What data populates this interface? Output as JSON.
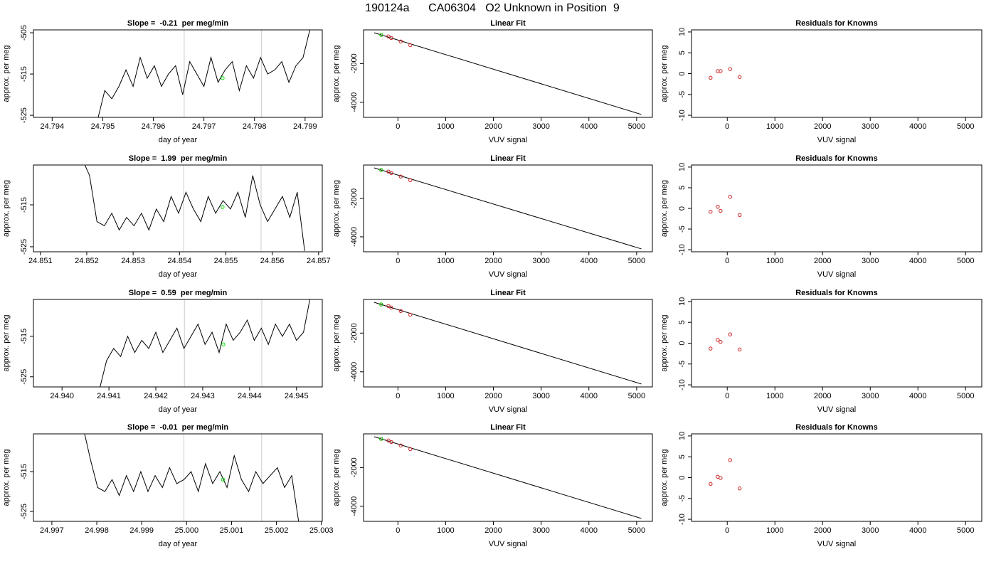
{
  "title": "190124a      CA06304   O2 Unknown in Position  9",
  "chart_data": [
    {
      "type": "line",
      "title": "Slope =  -0.21  per meg/min",
      "xlabel": "day of year",
      "ylabel": "approx. per meg",
      "xlim": [
        24.79363,
        24.79934
      ],
      "ylim": [
        -525.5,
        -504.3
      ],
      "xticks": [
        24.794,
        24.795,
        24.796,
        24.797,
        24.798,
        24.799
      ],
      "yticks": [
        -505,
        -515,
        -525
      ],
      "vlines": [
        24.79661,
        24.79814
      ],
      "vline_color": "#cccccc",
      "series": [
        {
          "style": "line",
          "color": "#000000",
          "x": [
            24.7949,
            24.79504,
            24.79518,
            24.79532,
            24.79546,
            24.7956,
            24.79574,
            24.79588,
            24.79602,
            24.79616,
            24.7963,
            24.79644,
            24.79658,
            24.79672,
            24.79686,
            24.797,
            24.79714,
            24.79728,
            24.79742,
            24.79756,
            24.7977,
            24.79784,
            24.79798,
            24.79812,
            24.79826,
            24.7984,
            24.79854,
            24.79868,
            24.79882,
            24.79896,
            24.7991
          ],
          "values": [
            -526,
            -519,
            -521,
            -518,
            -514,
            -518,
            -511,
            -516,
            -513,
            -518,
            -515,
            -513,
            -520,
            -512,
            -515,
            -518,
            -511,
            -517,
            -514,
            -512,
            -519,
            -513,
            -516,
            -511,
            -515,
            -514,
            -512,
            -517,
            -513,
            -511,
            -504
          ]
        },
        {
          "style": "points",
          "color": "#00dd00",
          "x": [
            24.79737
          ],
          "values": [
            -516
          ]
        }
      ]
    },
    {
      "type": "line",
      "title": "Linear Fit",
      "xlabel": "VUV signal",
      "ylabel": "approx. per meg",
      "xlim": [
        -720,
        5330
      ],
      "ylim": [
        -4780,
        -260
      ],
      "xticks": [
        0,
        1000,
        2000,
        3000,
        4000,
        5000
      ],
      "yticks": [
        -2000,
        -4000
      ],
      "series": [
        {
          "style": "line",
          "color": "#000000",
          "x": [
            -500,
            5100
          ],
          "values": [
            -407,
            -4630
          ]
        },
        {
          "style": "points",
          "color": "#cc2222",
          "x": [
            -350,
            -200,
            -140,
            60,
            260
          ],
          "values": [
            -520,
            -600,
            -680,
            -860,
            -1050
          ]
        },
        {
          "style": "points",
          "color": "#00dd00",
          "x": [
            -350
          ],
          "values": [
            -516
          ]
        }
      ]
    },
    {
      "type": "scatter",
      "title": "Residuals for Knowns",
      "xlabel": "VUV signal",
      "ylabel": "approx. per meg",
      "xlim": [
        -750,
        5340
      ],
      "ylim": [
        -10.5,
        10.5
      ],
      "xticks": [
        0,
        1000,
        2000,
        3000,
        4000,
        5000
      ],
      "yticks": [
        -10,
        -5,
        0,
        5,
        10
      ],
      "series": [
        {
          "style": "points",
          "color": "#cc2222",
          "x": [
            -350,
            -200,
            -140,
            60,
            260
          ],
          "values": [
            -1,
            0.6,
            0.6,
            1.1,
            -0.8
          ]
        }
      ]
    },
    {
      "type": "line",
      "title": "Slope =  1.99  per meg/min",
      "xlabel": "day of year",
      "ylabel": "approx. per meg",
      "xlim": [
        24.85085,
        24.85708
      ],
      "ylim": [
        -526.2,
        -505.5
      ],
      "xticks": [
        24.851,
        24.852,
        24.853,
        24.854,
        24.855,
        24.856,
        24.857
      ],
      "yticks": [
        -515,
        -525
      ],
      "vlines": [
        24.85409,
        24.85576
      ],
      "vline_color": "#cccccc",
      "series": [
        {
          "style": "line",
          "color": "#000000",
          "x": [
            24.8519,
            24.85206,
            24.85222,
            24.85238,
            24.85254,
            24.8527,
            24.85286,
            24.85302,
            24.85318,
            24.85334,
            24.8535,
            24.85366,
            24.85382,
            24.85398,
            24.85414,
            24.8543,
            24.85446,
            24.85462,
            24.85478,
            24.85494,
            24.8551,
            24.85526,
            24.85542,
            24.85558,
            24.85574,
            24.8559,
            24.85606,
            24.85622,
            24.85638,
            24.85654,
            24.8567
          ],
          "values": [
            -504,
            -508,
            -519,
            -520,
            -517,
            -521,
            -518,
            -520,
            -517,
            -521,
            -516,
            -519,
            -513,
            -517,
            -512,
            -516,
            -519,
            -513,
            -517,
            -514,
            -516,
            -512,
            -518,
            -508,
            -515,
            -519,
            -516,
            -513,
            -518,
            -512,
            -526
          ]
        },
        {
          "style": "points",
          "color": "#00dd00",
          "x": [
            24.85493
          ],
          "values": [
            -515.5
          ]
        }
      ]
    },
    {
      "type": "line",
      "title": "Linear Fit",
      "xlabel": "VUV signal",
      "ylabel": "approx. per meg",
      "xlim": [
        -720,
        5330
      ],
      "ylim": [
        -4780,
        -260
      ],
      "xticks": [
        0,
        1000,
        2000,
        3000,
        4000,
        5000
      ],
      "yticks": [
        -2000,
        -4000
      ],
      "series": [
        {
          "style": "line",
          "color": "#000000",
          "x": [
            -500,
            5100
          ],
          "values": [
            -407,
            -4630
          ]
        },
        {
          "style": "points",
          "color": "#cc2222",
          "x": [
            -350,
            -200,
            -140,
            60,
            260
          ],
          "values": [
            -520,
            -600,
            -680,
            -860,
            -1050
          ]
        },
        {
          "style": "points",
          "color": "#00dd00",
          "x": [
            -350
          ],
          "values": [
            -515.5
          ]
        }
      ]
    },
    {
      "type": "scatter",
      "title": "Residuals for Knowns",
      "xlabel": "VUV signal",
      "ylabel": "approx. per meg",
      "xlim": [
        -750,
        5340
      ],
      "ylim": [
        -10.5,
        10.5
      ],
      "xticks": [
        0,
        1000,
        2000,
        3000,
        4000,
        5000
      ],
      "yticks": [
        -10,
        -5,
        0,
        5,
        10
      ],
      "series": [
        {
          "style": "points",
          "color": "#cc2222",
          "x": [
            -350,
            -200,
            -140,
            60,
            260
          ],
          "values": [
            -0.8,
            0.4,
            -0.6,
            2.8,
            -1.6
          ]
        }
      ]
    },
    {
      "type": "line",
      "title": "Slope =  0.59  per meg/min",
      "xlabel": "day of year",
      "ylabel": "approx. per meg",
      "xlim": [
        24.93939,
        24.94555
      ],
      "ylim": [
        -527.5,
        -505.9
      ],
      "xticks": [
        {
          "value": 24.94,
          "label": "24.940"
        },
        24.941,
        24.942,
        24.943,
        24.944,
        24.945
      ],
      "yticks": [
        -515,
        -525
      ],
      "vlines": [
        24.94261,
        24.94426
      ],
      "vline_color": "#cccccc",
      "series": [
        {
          "style": "line",
          "color": "#000000",
          "x": [
            24.9408,
            24.94095,
            24.9411,
            24.94125,
            24.9414,
            24.94155,
            24.9417,
            24.94185,
            24.942,
            24.94215,
            24.9423,
            24.94245,
            24.9426,
            24.94275,
            24.9429,
            24.94305,
            24.9432,
            24.94335,
            24.9435,
            24.94365,
            24.9438,
            24.94395,
            24.9441,
            24.94425,
            24.9444,
            24.94455,
            24.9447,
            24.94485,
            24.945,
            24.94515,
            24.9453
          ],
          "values": [
            -528,
            -521,
            -518,
            -520,
            -515,
            -519,
            -516,
            -518,
            -514,
            -519,
            -516,
            -513,
            -518,
            -515,
            -512,
            -517,
            -514,
            -519,
            -512,
            -516,
            -514,
            -511,
            -516,
            -513,
            -517,
            -512,
            -515,
            -512,
            -516,
            -514,
            -505
          ]
        },
        {
          "style": "points",
          "color": "#00dd00",
          "x": [
            24.94344
          ],
          "values": [
            -517
          ]
        }
      ]
    },
    {
      "type": "line",
      "title": "Linear Fit",
      "xlabel": "VUV signal",
      "ylabel": "approx. per meg",
      "xlim": [
        -720,
        5330
      ],
      "ylim": [
        -4780,
        -260
      ],
      "xticks": [
        0,
        1000,
        2000,
        3000,
        4000,
        5000
      ],
      "yticks": [
        -2000,
        -4000
      ],
      "series": [
        {
          "style": "line",
          "color": "#000000",
          "x": [
            -500,
            5100
          ],
          "values": [
            -407,
            -4630
          ]
        },
        {
          "style": "points",
          "color": "#cc2222",
          "x": [
            -350,
            -200,
            -140,
            60,
            260
          ],
          "values": [
            -520,
            -600,
            -680,
            -860,
            -1050
          ]
        },
        {
          "style": "points",
          "color": "#00dd00",
          "x": [
            -350
          ],
          "values": [
            -517
          ]
        }
      ]
    },
    {
      "type": "scatter",
      "title": "Residuals for Knowns",
      "xlabel": "VUV signal",
      "ylabel": "approx. per meg",
      "xlim": [
        -750,
        5340
      ],
      "ylim": [
        -10.5,
        10.5
      ],
      "xticks": [
        0,
        1000,
        2000,
        3000,
        4000,
        5000
      ],
      "yticks": [
        -10,
        -5,
        0,
        5,
        10
      ],
      "series": [
        {
          "style": "points",
          "color": "#cc2222",
          "x": [
            -350,
            -200,
            -140,
            60,
            260
          ],
          "values": [
            -1.3,
            0.8,
            0.3,
            2.1,
            -1.5
          ]
        }
      ]
    },
    {
      "type": "line",
      "title": "Slope =  -0.01  per meg/min",
      "xlabel": "day of year",
      "ylabel": "approx. per meg",
      "xlim": [
        24.99659,
        25.00302
      ],
      "ylim": [
        -527.5,
        -505.5
      ],
      "xticks": [
        24.997,
        24.998,
        24.999,
        {
          "value": 25,
          "label": "25.000"
        },
        25.001,
        25.002,
        25.003
      ],
      "yticks": [
        -515,
        -525
      ],
      "vlines": [
        24.99994,
        25.00167
      ],
      "vline_color": "#cccccc",
      "series": [
        {
          "style": "line",
          "color": "#000000",
          "x": [
            24.9977,
            24.99786,
            24.99802,
            24.99818,
            24.99834,
            24.9985,
            24.99866,
            24.99882,
            24.99898,
            24.99914,
            24.9993,
            24.99946,
            24.99962,
            24.99978,
            24.99994,
            25.0001,
            25.00026,
            25.00042,
            25.00058,
            25.00074,
            25.0009,
            25.00106,
            25.00122,
            25.00138,
            25.00154,
            25.0017,
            25.00186,
            25.00202,
            25.00218,
            25.00234,
            25.0025
          ],
          "values": [
            -504,
            -512,
            -519,
            -520,
            -517,
            -521,
            -516,
            -520,
            -515,
            -520,
            -516,
            -519,
            -514,
            -518,
            -517,
            -515,
            -520,
            -513,
            -518,
            -515,
            -519,
            -511,
            -517,
            -520,
            -515,
            -518,
            -516,
            -514,
            -519,
            -516,
            -528
          ]
        },
        {
          "style": "points",
          "color": "#00dd00",
          "x": [
            25.00081
          ],
          "values": [
            -517
          ]
        }
      ]
    },
    {
      "type": "line",
      "title": "Linear Fit",
      "xlabel": "VUV signal",
      "ylabel": "approx. per meg",
      "xlim": [
        -720,
        5330
      ],
      "ylim": [
        -4780,
        -260
      ],
      "xticks": [
        0,
        1000,
        2000,
        3000,
        4000,
        5000
      ],
      "yticks": [
        -2000,
        -4000
      ],
      "series": [
        {
          "style": "line",
          "color": "#000000",
          "x": [
            -500,
            5100
          ],
          "values": [
            -407,
            -4630
          ]
        },
        {
          "style": "points",
          "color": "#cc2222",
          "x": [
            -350,
            -200,
            -140,
            60,
            260
          ],
          "values": [
            -520,
            -600,
            -680,
            -860,
            -1050
          ]
        },
        {
          "style": "points",
          "color": "#00dd00",
          "x": [
            -350
          ],
          "values": [
            -517
          ]
        }
      ]
    },
    {
      "type": "scatter",
      "title": "Residuals for Knowns",
      "xlabel": "VUV signal",
      "ylabel": "approx. per meg",
      "xlim": [
        -750,
        5340
      ],
      "ylim": [
        -10.5,
        10.5
      ],
      "xticks": [
        0,
        1000,
        2000,
        3000,
        4000,
        5000
      ],
      "yticks": [
        -10,
        -5,
        0,
        5,
        10
      ],
      "series": [
        {
          "style": "points",
          "color": "#cc2222",
          "x": [
            -350,
            -200,
            -140,
            60,
            260
          ],
          "values": [
            -1.5,
            0.2,
            -0.1,
            4.2,
            -2.6
          ]
        }
      ]
    }
  ]
}
